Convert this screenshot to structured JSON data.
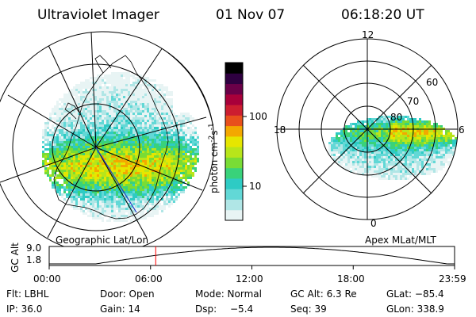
{
  "header": {
    "instrument": "Ultraviolet Imager",
    "date": "01 Nov 07",
    "time": "06:18:20 UT"
  },
  "colorbar": {
    "unit_label": "photon cm",
    "exponent_1": "-2",
    "s_label": "s",
    "exponent_2": "-1",
    "ticks": [
      "100",
      "10"
    ],
    "colors": [
      "#e8f4f4",
      "#b0e6e6",
      "#62d8d6",
      "#2ecbc4",
      "#39d27a",
      "#79dc35",
      "#b8e51a",
      "#e6e600",
      "#f3a800",
      "#e8501c",
      "#cc1e30",
      "#a8003a",
      "#6a0048",
      "#2e0040",
      "#000000"
    ]
  },
  "globe_map": {
    "label": "Geographic Lat/Lon"
  },
  "polar_map": {
    "label": "Apex  MLat/MLT",
    "mlt_labels": [
      "12",
      "18",
      "6",
      "0"
    ],
    "mlat_labels": [
      "60",
      "70",
      "80"
    ]
  },
  "timeline": {
    "y_title": "GC Alt",
    "y_ticks": [
      "9.0",
      "1.8"
    ],
    "x_ticks": [
      "00:00",
      "06:00",
      "12:00",
      "18:00",
      "23:59"
    ],
    "marker_time": "06:18:20",
    "marker_color": "#ff0000"
  },
  "status": {
    "row1": {
      "filter": "Flt: LBHL",
      "door": "Door: Open",
      "mode": "Mode: Normal",
      "gc_alt": "GC Alt: 6.3 Re",
      "glat": "GLat: −85.4"
    },
    "row2": {
      "ip": "IP: 36.0",
      "gain": "Gain: 14",
      "dsp_label": "Dsp:",
      "dsp_value": "−5.4",
      "seq": "Seq: 39",
      "glon": "GLon: 338.9"
    }
  }
}
